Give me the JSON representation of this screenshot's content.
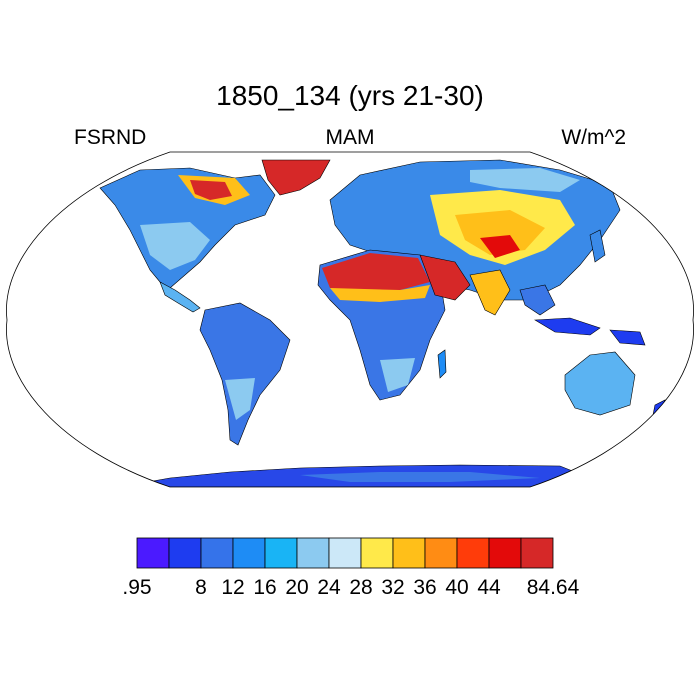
{
  "title": "1850_134 (yrs 21-30)",
  "left_label": "FSRND",
  "center_label": "MAM",
  "right_label": "W/m^2",
  "colorbar": {
    "tick_labels": [
      ".95",
      "8",
      "12",
      "16",
      "20",
      "24",
      "28",
      "32",
      "36",
      "40",
      "44",
      "84.64"
    ],
    "colors": [
      "#4b1aff",
      "#1e3cf0",
      "#3573ea",
      "#1e8cf5",
      "#19b4f5",
      "#8ccaf0",
      "#cce8f8",
      "#ffe94a",
      "#ffbf19",
      "#ff8c14",
      "#ff3c0a",
      "#e30a0a",
      "#d62828"
    ]
  },
  "colors": {
    "ocean": "#ffffff",
    "land_low": "#3a76e6",
    "land_mid": "#5bb3f2",
    "land_pale": "#bfe0f5",
    "desert": "#d62828",
    "desert_edge": "#ffbf19",
    "ice": "#2848e8",
    "coast": "#000000"
  }
}
